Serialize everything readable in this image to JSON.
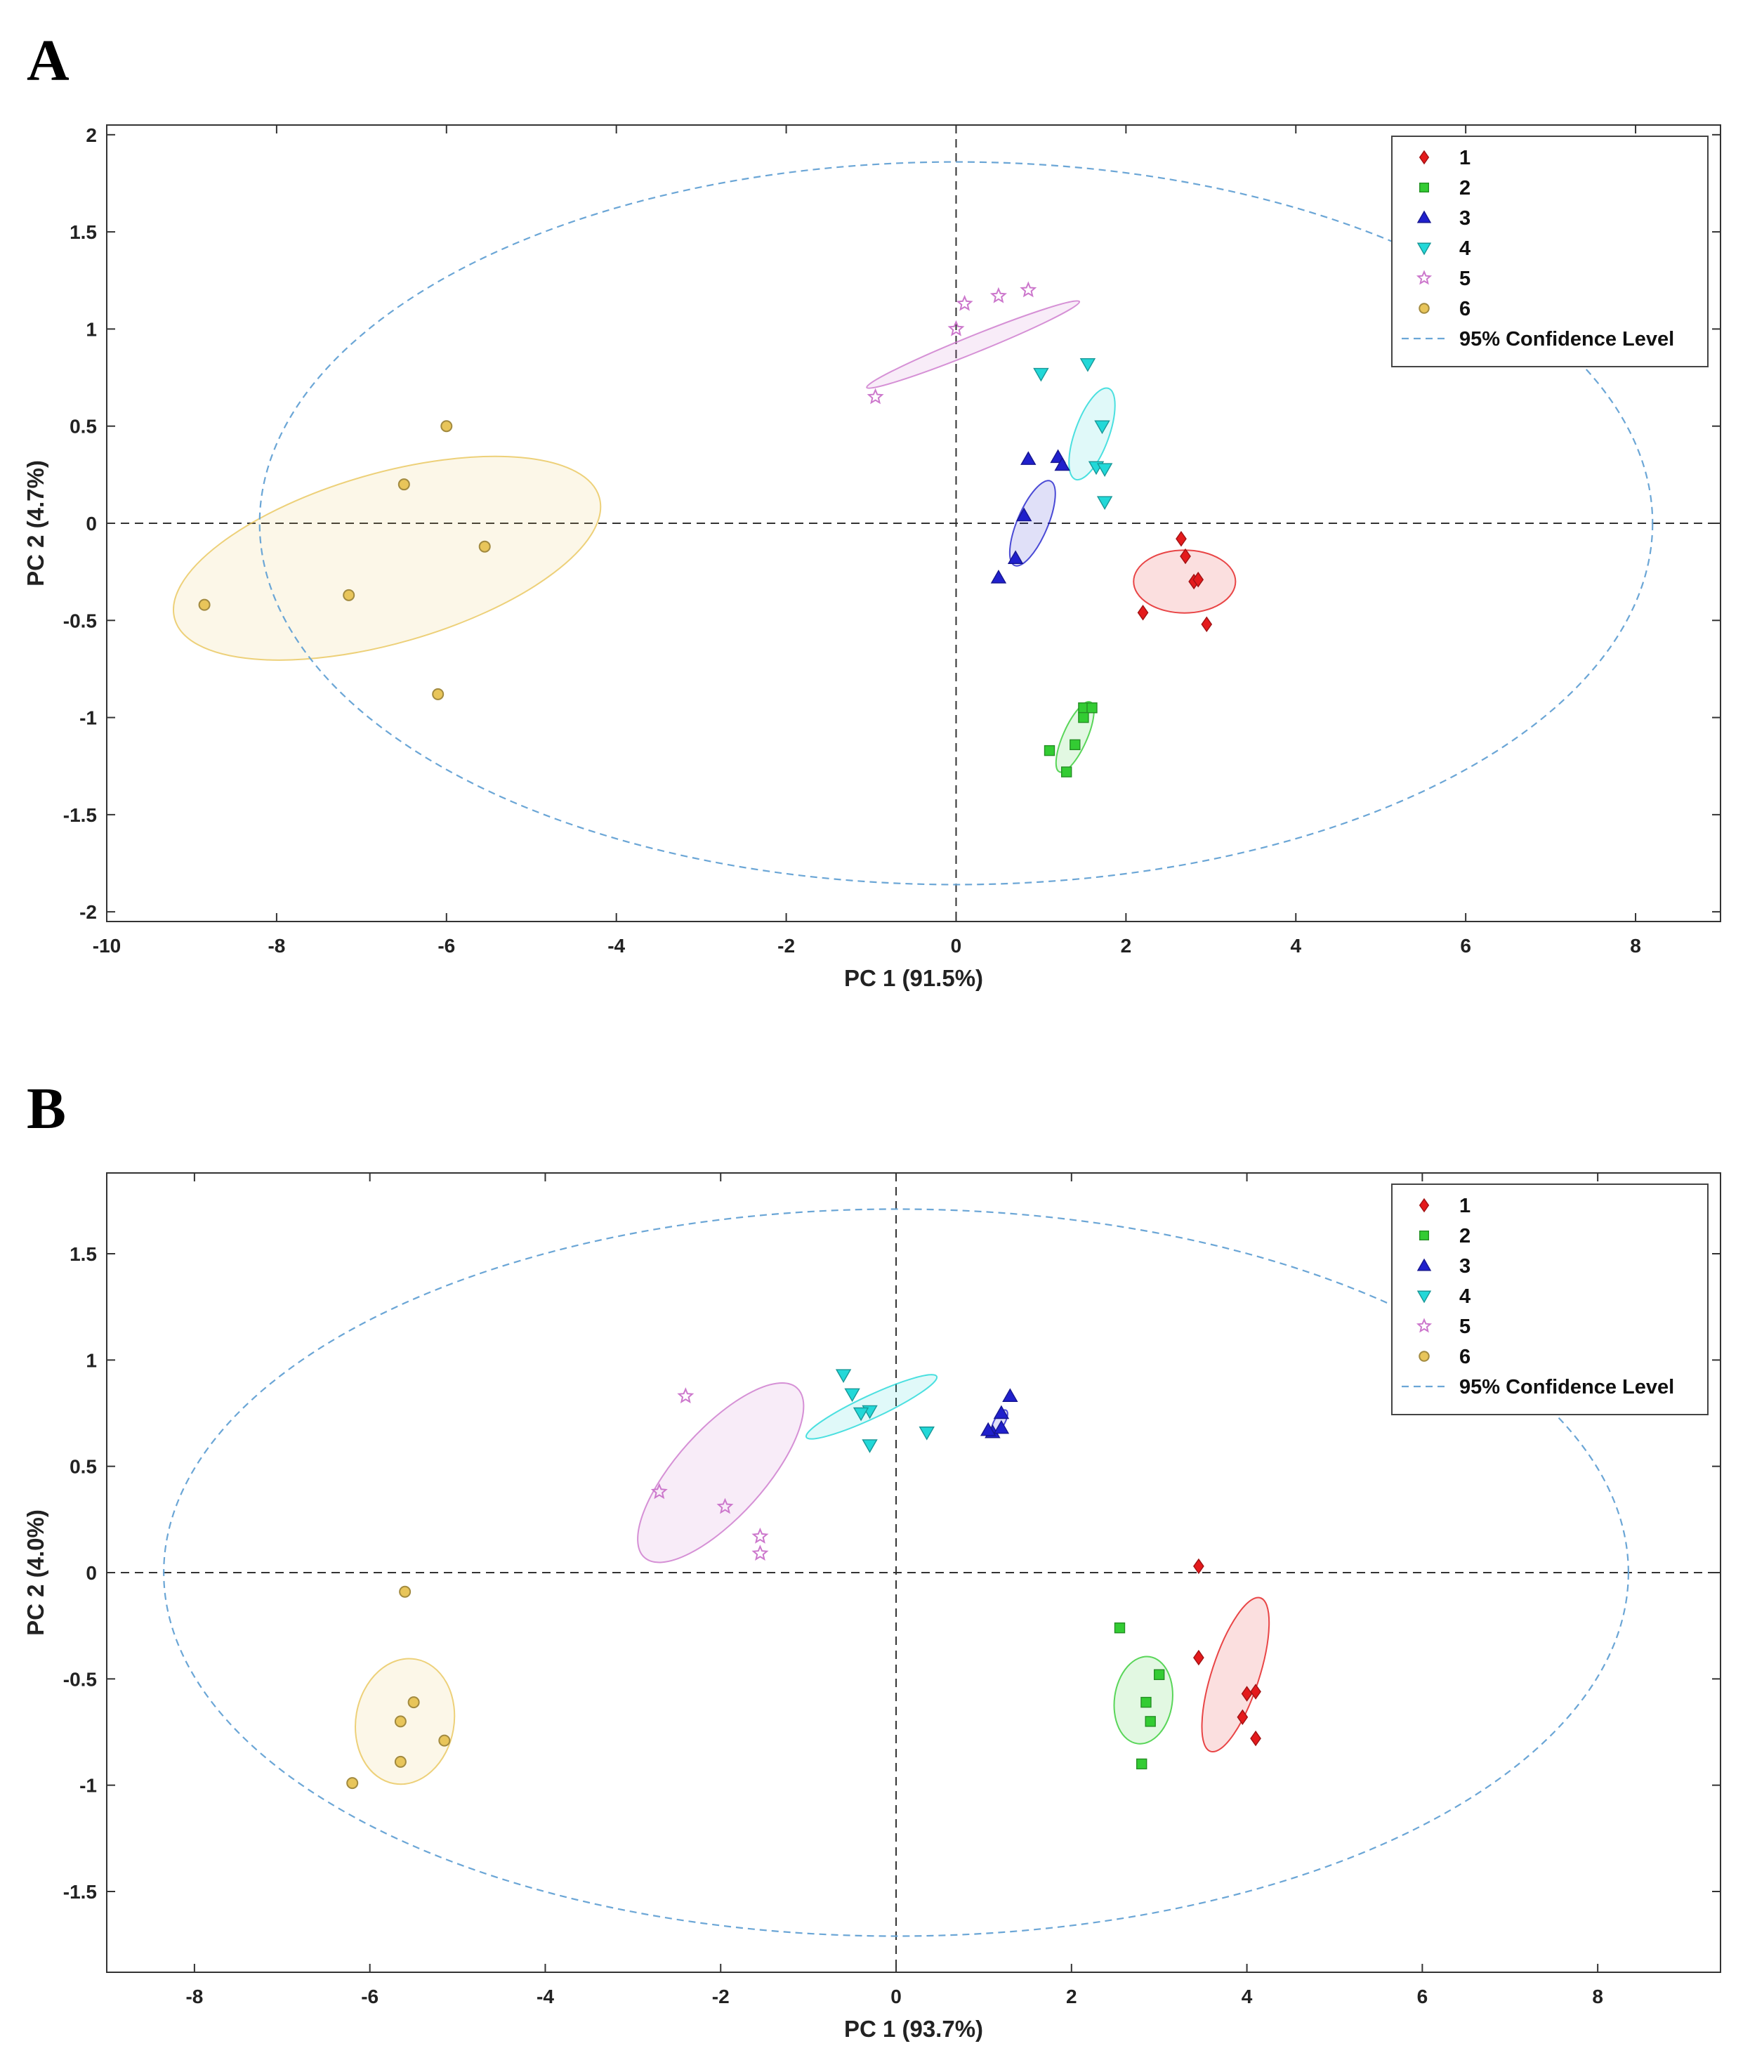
{
  "chart_data": [
    {
      "panel_label": "A",
      "type": "scatter",
      "xlabel": "PC 1 (91.5%)",
      "ylabel": "PC 2 (4.7%)",
      "xlim": [
        -10,
        9
      ],
      "ylim": [
        -2.05,
        2.05
      ],
      "xticks": [
        -10,
        -8,
        -6,
        -4,
        -2,
        0,
        2,
        4,
        6,
        8
      ],
      "yticks": [
        -2,
        -1.5,
        -1,
        -0.5,
        0,
        0.5,
        1,
        1.5,
        2
      ],
      "legend_position": "top-right",
      "confidence_label": "95% Confidence Level",
      "confidence_ellipse": {
        "cx": 0,
        "cy": 0,
        "rx": 8.2,
        "ry": 1.86,
        "angle": 0
      },
      "series": [
        {
          "name": "1",
          "marker": "diamond",
          "color": "#e41a1c",
          "points": [
            [
              2.65,
              -0.08
            ],
            [
              2.7,
              -0.17
            ],
            [
              2.8,
              -0.3
            ],
            [
              2.85,
              -0.29
            ],
            [
              2.2,
              -0.46
            ],
            [
              2.95,
              -0.52
            ]
          ],
          "ellipse": {
            "cx": 2.69,
            "cy": -0.3,
            "rx": 0.6,
            "ry": 0.37,
            "angle": 0
          }
        },
        {
          "name": "2",
          "marker": "square",
          "color": "#33cc33",
          "points": [
            [
              1.5,
              -0.95
            ],
            [
              1.6,
              -0.95
            ],
            [
              1.5,
              -1.0
            ],
            [
              1.1,
              -1.17
            ],
            [
              1.4,
              -1.14
            ],
            [
              1.3,
              -1.28
            ]
          ],
          "ellipse": {
            "cx": 1.4,
            "cy": -1.1,
            "rx": 0.45,
            "ry": 0.14,
            "angle": -66
          }
        },
        {
          "name": "3",
          "marker": "triangle-up",
          "color": "#2020cc",
          "points": [
            [
              0.85,
              0.33
            ],
            [
              1.2,
              0.34
            ],
            [
              1.25,
              0.3
            ],
            [
              0.8,
              0.04
            ],
            [
              0.7,
              -0.18
            ],
            [
              0.5,
              -0.28
            ]
          ],
          "ellipse": {
            "cx": 0.9,
            "cy": 0.0,
            "rx": 0.54,
            "ry": 0.18,
            "angle": -67
          }
        },
        {
          "name": "4",
          "marker": "triangle-down",
          "color": "#22d8d8",
          "points": [
            [
              1.0,
              0.77
            ],
            [
              1.55,
              0.82
            ],
            [
              1.72,
              0.5
            ],
            [
              1.65,
              0.29
            ],
            [
              1.75,
              0.28
            ],
            [
              1.75,
              0.11
            ]
          ],
          "ellipse": {
            "cx": 1.6,
            "cy": 0.46,
            "rx": 0.57,
            "ry": 0.2,
            "angle": -70
          }
        },
        {
          "name": "5",
          "marker": "star",
          "color": "#cc77cc",
          "points": [
            [
              0.1,
              1.13
            ],
            [
              0.5,
              1.17
            ],
            [
              0.85,
              1.2
            ],
            [
              0.0,
              1.0
            ],
            [
              -0.95,
              0.65
            ]
          ],
          "ellipse": {
            "cx": 0.2,
            "cy": 0.92,
            "rx": 1.35,
            "ry": 0.1,
            "angle": -22
          }
        },
        {
          "name": "6",
          "marker": "circle",
          "color": "#e8c55a",
          "points": [
            [
              -6.0,
              0.5
            ],
            [
              -6.5,
              0.2
            ],
            [
              -5.55,
              -0.12
            ],
            [
              -7.15,
              -0.37
            ],
            [
              -6.1,
              -0.88
            ],
            [
              -8.85,
              -0.42
            ]
          ],
          "ellipse": {
            "cx": -6.7,
            "cy": -0.18,
            "rx": 2.6,
            "ry": 1.0,
            "angle": -16
          }
        }
      ]
    },
    {
      "panel_label": "B",
      "type": "scatter",
      "xlabel": "PC 1 (93.7%)",
      "ylabel": "PC 2 (4.0%)",
      "xlim": [
        -9,
        9.4
      ],
      "ylim": [
        -1.88,
        1.88
      ],
      "xticks": [
        -8,
        -6,
        -4,
        -2,
        0,
        2,
        4,
        6,
        8
      ],
      "yticks": [
        -1.5,
        -1,
        -0.5,
        0,
        0.5,
        1,
        1.5
      ],
      "legend_position": "top-right",
      "confidence_label": "95% Confidence Level",
      "confidence_ellipse": {
        "cx": 0,
        "cy": 0,
        "rx": 8.35,
        "ry": 1.71,
        "angle": 0
      },
      "series": [
        {
          "name": "1",
          "marker": "diamond",
          "color": "#e41a1c",
          "points": [
            [
              3.45,
              0.03
            ],
            [
              3.45,
              -0.4
            ],
            [
              4.0,
              -0.57
            ],
            [
              4.1,
              -0.56
            ],
            [
              3.95,
              -0.68
            ],
            [
              4.1,
              -0.78
            ]
          ],
          "ellipse": {
            "cx": 3.87,
            "cy": -0.48,
            "rx": 0.92,
            "ry": 0.27,
            "angle": -72
          }
        },
        {
          "name": "2",
          "marker": "square",
          "color": "#33cc33",
          "points": [
            [
              2.55,
              -0.26
            ],
            [
              3.0,
              -0.48
            ],
            [
              2.85,
              -0.61
            ],
            [
              2.9,
              -0.7
            ],
            [
              2.8,
              -0.9
            ]
          ],
          "ellipse": {
            "cx": 2.82,
            "cy": -0.6,
            "rx": 0.5,
            "ry": 0.33,
            "angle": -82
          }
        },
        {
          "name": "3",
          "marker": "triangle-up",
          "color": "#2020cc",
          "points": [
            [
              1.3,
              0.83
            ],
            [
              1.2,
              0.75
            ],
            [
              1.1,
              0.66
            ],
            [
              1.05,
              0.67
            ],
            [
              1.2,
              0.68
            ]
          ],
          "ellipse": {
            "cx": 1.18,
            "cy": 0.71,
            "rx": 0.15,
            "ry": 0.06,
            "angle": -60
          }
        },
        {
          "name": "4",
          "marker": "triangle-down",
          "color": "#22d8d8",
          "points": [
            [
              -0.6,
              0.93
            ],
            [
              -0.5,
              0.84
            ],
            [
              -0.3,
              0.76
            ],
            [
              -0.4,
              0.75
            ],
            [
              0.35,
              0.66
            ],
            [
              -0.3,
              0.6
            ]
          ],
          "ellipse": {
            "cx": -0.28,
            "cy": 0.78,
            "rx": 0.82,
            "ry": 0.13,
            "angle": -25
          }
        },
        {
          "name": "5",
          "marker": "star",
          "color": "#cc77cc",
          "points": [
            [
              -2.4,
              0.83
            ],
            [
              -2.7,
              0.38
            ],
            [
              -1.95,
              0.31
            ],
            [
              -1.55,
              0.17
            ],
            [
              -1.55,
              0.09
            ]
          ],
          "ellipse": {
            "cx": -2.0,
            "cy": 0.47,
            "rx": 1.3,
            "ry": 0.5,
            "angle": -48
          }
        },
        {
          "name": "6",
          "marker": "circle",
          "color": "#e8c55a",
          "points": [
            [
              -5.6,
              -0.09
            ],
            [
              -5.5,
              -0.61
            ],
            [
              -5.65,
              -0.7
            ],
            [
              -5.15,
              -0.79
            ],
            [
              -5.65,
              -0.89
            ],
            [
              -6.2,
              -0.99
            ]
          ],
          "ellipse": {
            "cx": -5.6,
            "cy": -0.7,
            "rx": 0.72,
            "ry": 0.56,
            "angle": -80
          }
        }
      ]
    }
  ]
}
